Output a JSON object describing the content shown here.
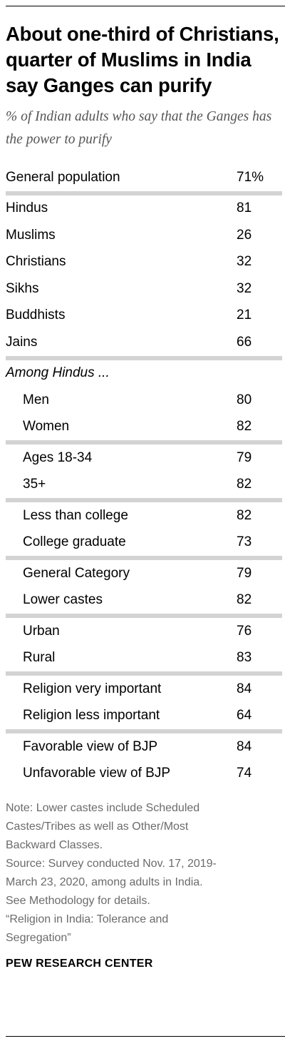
{
  "title": "About one-third of Christians, quarter of Muslims in India say Ganges can purify",
  "subtitle": "% of Indian adults who say that the Ganges has the power to purify",
  "chart_data": {
    "type": "table",
    "rows": [
      {
        "label": "General population",
        "value": "71%"
      },
      {
        "label": "Hindus",
        "value": "81"
      },
      {
        "label": "Muslims",
        "value": "26"
      },
      {
        "label": "Christians",
        "value": "32"
      },
      {
        "label": "Sikhs",
        "value": "32"
      },
      {
        "label": "Buddhists",
        "value": "21"
      },
      {
        "label": "Jains",
        "value": "66"
      },
      {
        "label": "Among Hindus ...",
        "value": ""
      },
      {
        "label": "Men",
        "value": "80"
      },
      {
        "label": "Women",
        "value": "82"
      },
      {
        "label": "Ages 18-34",
        "value": "79"
      },
      {
        "label": "35+",
        "value": "82"
      },
      {
        "label": "Less than college",
        "value": "82"
      },
      {
        "label": "College graduate",
        "value": "73"
      },
      {
        "label": "General Category",
        "value": "79"
      },
      {
        "label": "Lower castes",
        "value": "82"
      },
      {
        "label": "Urban",
        "value": "76"
      },
      {
        "label": "Rural",
        "value": "83"
      },
      {
        "label": "Religion very important",
        "value": "84"
      },
      {
        "label": "Religion less important",
        "value": "64"
      },
      {
        "label": "Favorable view of BJP",
        "value": "84"
      },
      {
        "label": "Unfavorable view of BJP",
        "value": "74"
      }
    ]
  },
  "notes": [
    "Note: Lower castes include Scheduled",
    "Castes/Tribes as well as Other/Most",
    "Backward Classes.",
    "Source: Survey conducted Nov. 17, 2019-",
    "March 23, 2020, among adults in India.",
    "See Methodology for details.",
    "“Religion in India: Tolerance and",
    "Segregation”"
  ],
  "brand": "PEW RESEARCH CENTER",
  "colors": {
    "separator": "#d3d3d3",
    "subtitle": "#555555",
    "notes": "#6b6b6b"
  }
}
